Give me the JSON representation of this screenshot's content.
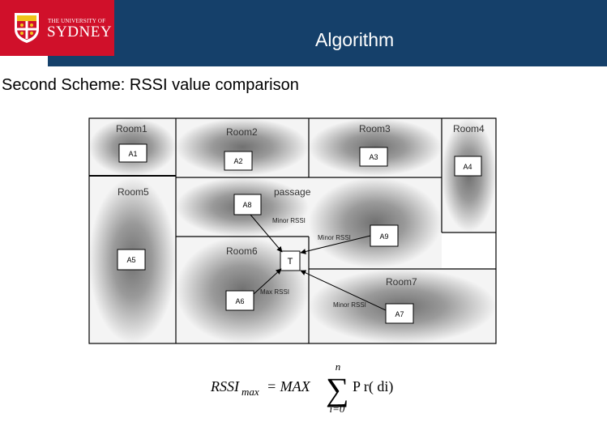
{
  "header": {
    "logo_line1": "THE UNIVERSITY OF",
    "logo_line2": "SYDNEY",
    "title": "Algorithm"
  },
  "subtitle": "Second Scheme: RSSI value comparison",
  "floorplan": {
    "rooms": [
      "Room1",
      "Room2",
      "Room3",
      "Room4",
      "Room5",
      "passage",
      "Room6",
      "Room7"
    ],
    "anchors": [
      "A1",
      "A2",
      "A3",
      "A4",
      "A5",
      "A6",
      "A7",
      "A8",
      "A9"
    ],
    "target": "T",
    "labels": {
      "minor_a8": "Minor RSSI",
      "minor_a9": "Minor RSSI",
      "minor_a7": "Minor RSSI",
      "max_a6": "Max RSSI"
    }
  },
  "formula": {
    "lhs": "RSSI",
    "lhs_sub": "max",
    "eq": "= MAX",
    "sum_top": "n",
    "sum_bottom": "i=0",
    "rhs": "P r( di)"
  },
  "colors": {
    "header_blue": "#15406a",
    "logo_red": "#d0102a"
  }
}
